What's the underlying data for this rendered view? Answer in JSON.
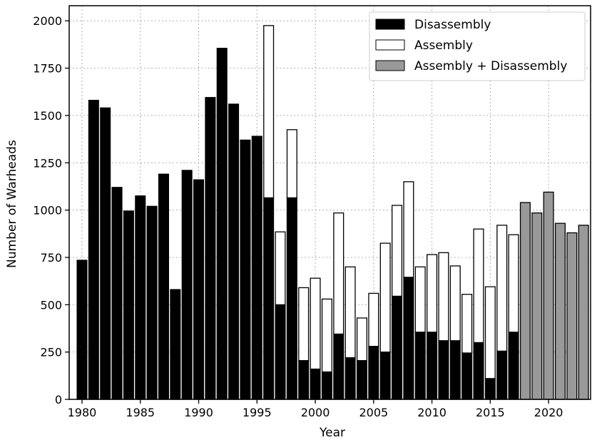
{
  "chart_data": {
    "type": "bar",
    "stacked": true,
    "xlabel": "Year",
    "ylabel": "Number of Warheads",
    "xlim": [
      1979,
      1982
    ],
    "ylim": [
      0,
      2080
    ],
    "x_ticks": [
      1980,
      1985,
      1990,
      1995,
      2000,
      2005,
      2010,
      2015,
      2020
    ],
    "y_ticks": [
      0,
      250,
      500,
      750,
      1000,
      1250,
      1500,
      1750,
      2000
    ],
    "grid": true,
    "legend_position": "top-right",
    "colors": {
      "Disassembly": "#000000",
      "Assembly": "#ffffff",
      "Assembly + Disassembly": "#999999"
    },
    "categories": [
      1980,
      1981,
      1982,
      1983,
      1984,
      1985,
      1986,
      1987,
      1988,
      1989,
      1990,
      1991,
      1992,
      1993,
      1994,
      1995,
      1996,
      1997,
      1998,
      1999,
      2000,
      2001,
      2002,
      2003,
      2004,
      2005,
      2006,
      2007,
      2008,
      2009,
      2010,
      2011,
      2012,
      2013,
      2014,
      2015,
      2016,
      2017,
      2018,
      2019,
      2020,
      2021,
      2022,
      2023
    ],
    "series": [
      {
        "name": "Disassembly",
        "values": [
          735,
          1580,
          1540,
          1120,
          995,
          1075,
          1020,
          1190,
          580,
          1210,
          1160,
          1595,
          1855,
          1560,
          1370,
          1390,
          1065,
          500,
          1065,
          205,
          160,
          145,
          345,
          220,
          205,
          280,
          250,
          545,
          645,
          355,
          355,
          310,
          310,
          245,
          300,
          110,
          255,
          355,
          0,
          0,
          0,
          0,
          0,
          0
        ]
      },
      {
        "name": "Assembly",
        "values": [
          0,
          0,
          0,
          0,
          0,
          0,
          0,
          0,
          0,
          0,
          0,
          0,
          0,
          0,
          0,
          0,
          910,
          385,
          360,
          385,
          480,
          385,
          640,
          480,
          225,
          280,
          575,
          480,
          505,
          345,
          410,
          465,
          395,
          310,
          600,
          485,
          665,
          515,
          0,
          0,
          0,
          0,
          0,
          0
        ]
      },
      {
        "name": "Assembly + Disassembly",
        "values": [
          0,
          0,
          0,
          0,
          0,
          0,
          0,
          0,
          0,
          0,
          0,
          0,
          0,
          0,
          0,
          0,
          0,
          0,
          0,
          0,
          0,
          0,
          0,
          0,
          0,
          0,
          0,
          0,
          0,
          0,
          0,
          0,
          0,
          0,
          0,
          0,
          0,
          0,
          1040,
          985,
          1095,
          930,
          880,
          920
        ]
      }
    ]
  }
}
